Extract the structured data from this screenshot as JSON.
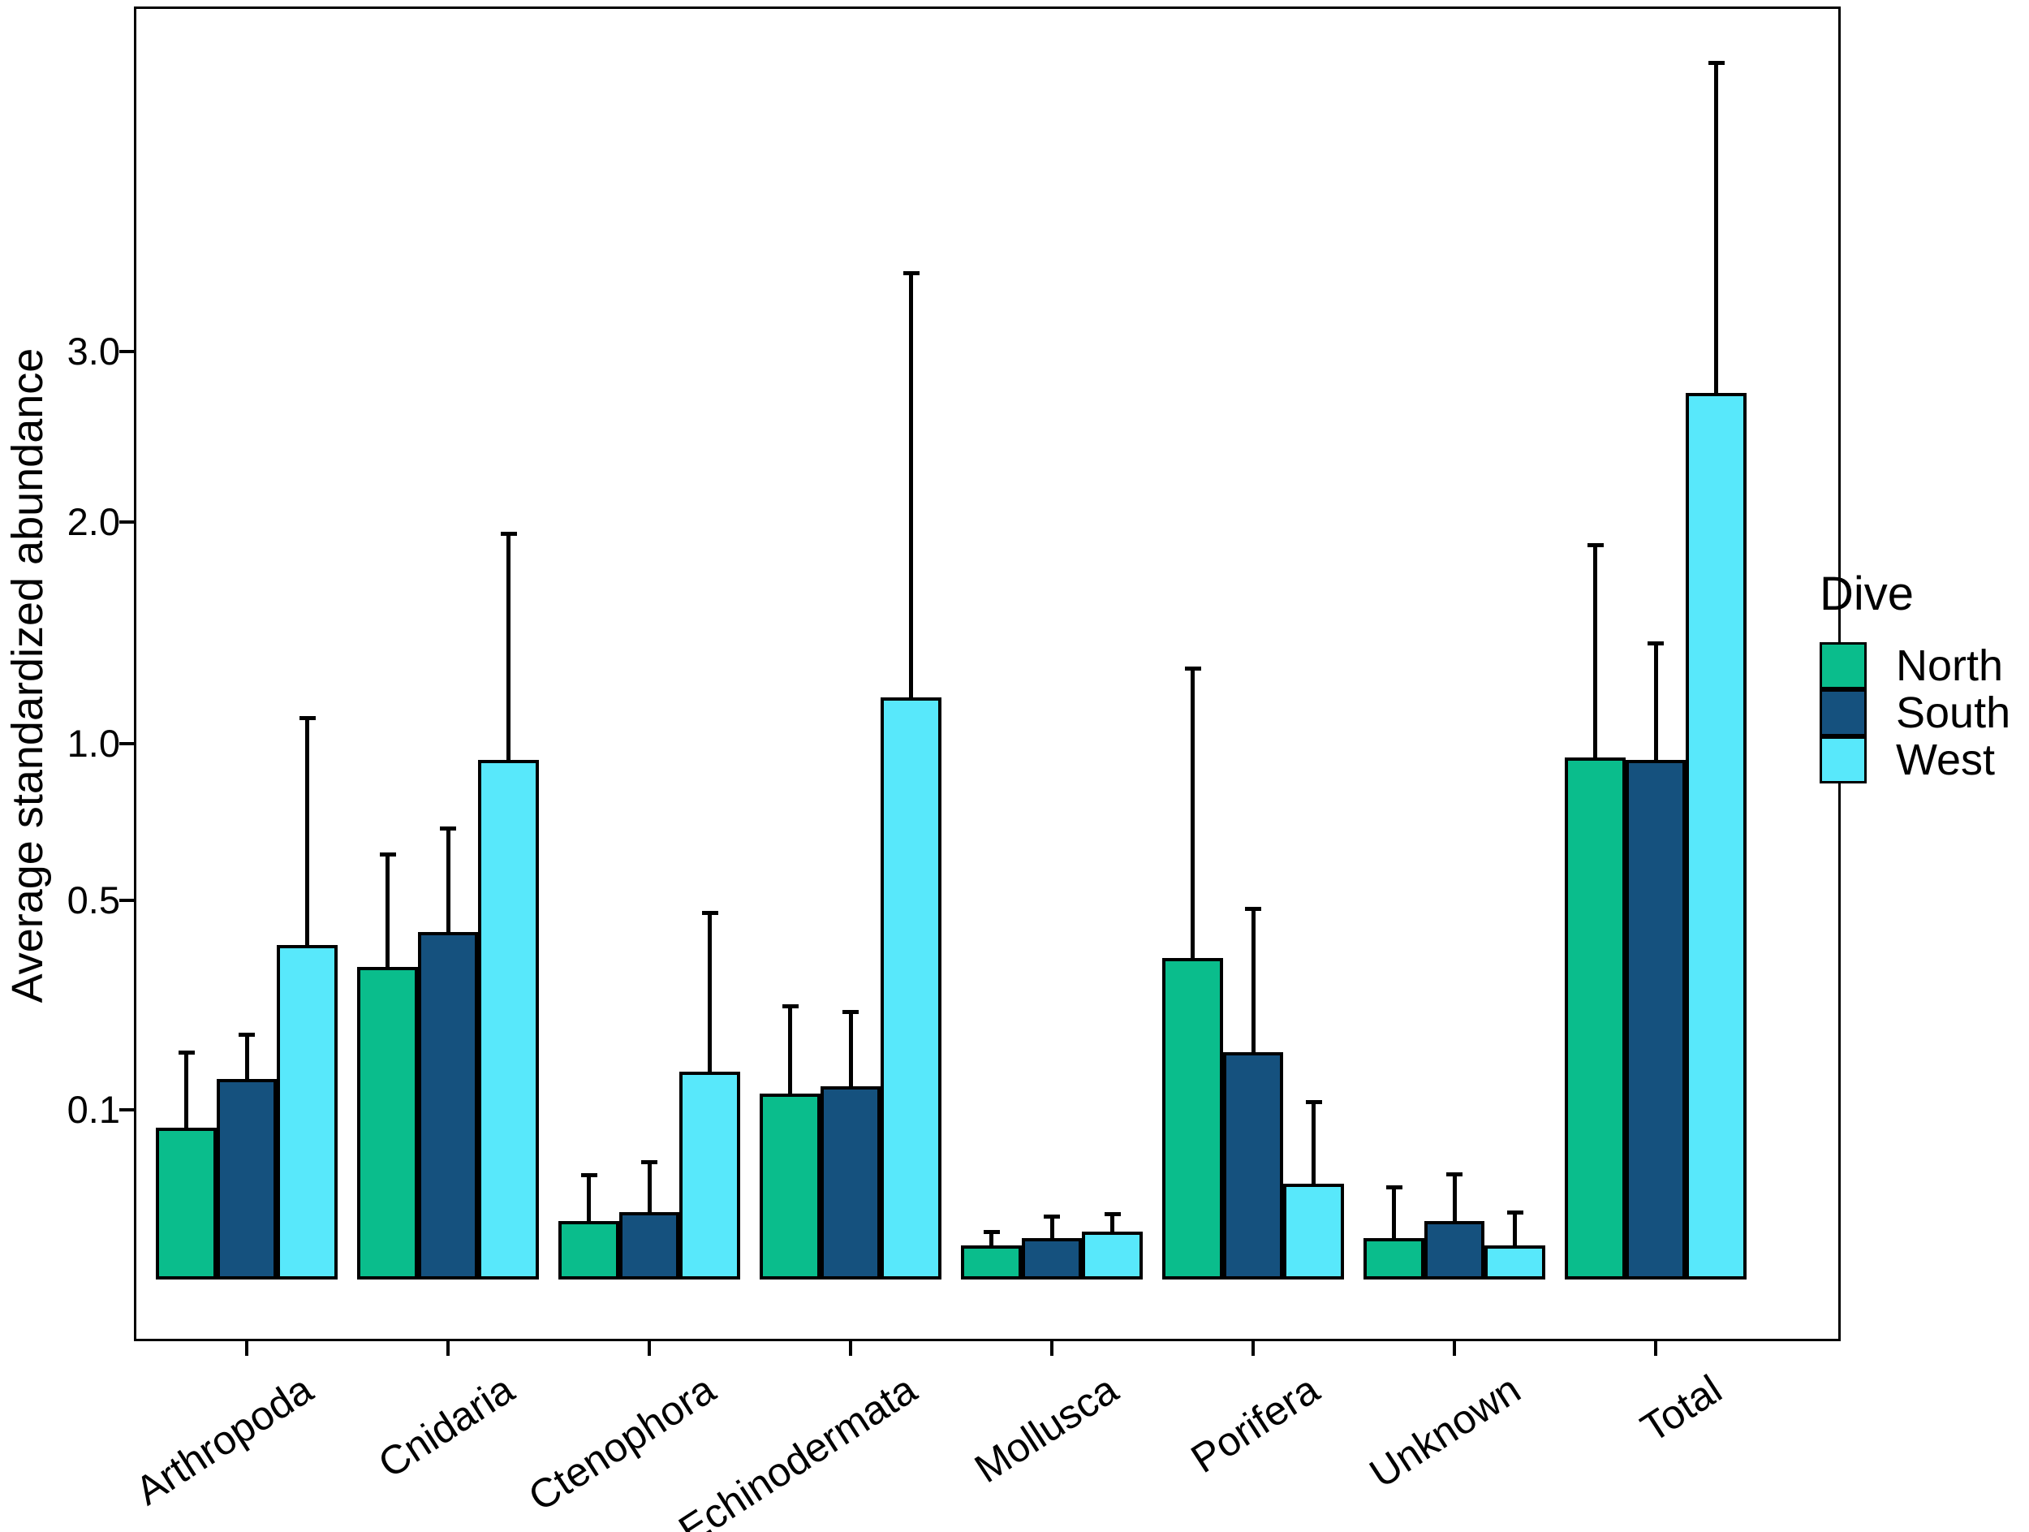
{
  "chart_data": {
    "type": "bar",
    "title": "",
    "xlabel": "",
    "ylabel": "Average standardized abundance",
    "y_scale": "sqrt",
    "ylim": [
      0,
      5.6
    ],
    "grid": false,
    "legend_title": "Dive",
    "legend_position": "right",
    "y_ticks": [
      {
        "value": 3.0,
        "label": "3.0"
      },
      {
        "value": 2.0,
        "label": "2.0"
      },
      {
        "value": 1.0,
        "label": "1.0"
      },
      {
        "value": 0.5,
        "label": "0.5"
      },
      {
        "value": 0.1,
        "label": "0.1"
      }
    ],
    "categories": [
      "Arthropoda",
      "Cnidaria",
      "Ctenophora",
      "Echinodermata",
      "Mollusca",
      "Porifera",
      "Unknown",
      "Total"
    ],
    "series": [
      {
        "name": "North",
        "color": "#0ABD8C",
        "values": [
          0.08,
          0.34,
          0.012,
          0.12,
          0.004,
          0.36,
          0.006,
          0.95
        ],
        "error_top": [
          0.18,
          0.63,
          0.038,
          0.26,
          0.008,
          1.3,
          0.03,
          1.88
        ]
      },
      {
        "name": "South",
        "color": "#15517E",
        "values": [
          0.14,
          0.42,
          0.016,
          0.13,
          0.006,
          0.18,
          0.012,
          0.94
        ],
        "error_top": [
          0.21,
          0.71,
          0.048,
          0.25,
          0.014,
          0.48,
          0.039,
          1.41
        ]
      },
      {
        "name": "West",
        "color": "#58E8FB",
        "values": [
          0.39,
          0.94,
          0.15,
          1.18,
          0.008,
          0.032,
          0.004,
          2.74
        ],
        "error_top": [
          1.1,
          1.94,
          0.47,
          3.53,
          0.015,
          0.11,
          0.016,
          5.16
        ]
      }
    ]
  },
  "legend": {
    "title": "Dive",
    "items": [
      {
        "label": "North"
      },
      {
        "label": "South"
      },
      {
        "label": "West"
      }
    ]
  }
}
